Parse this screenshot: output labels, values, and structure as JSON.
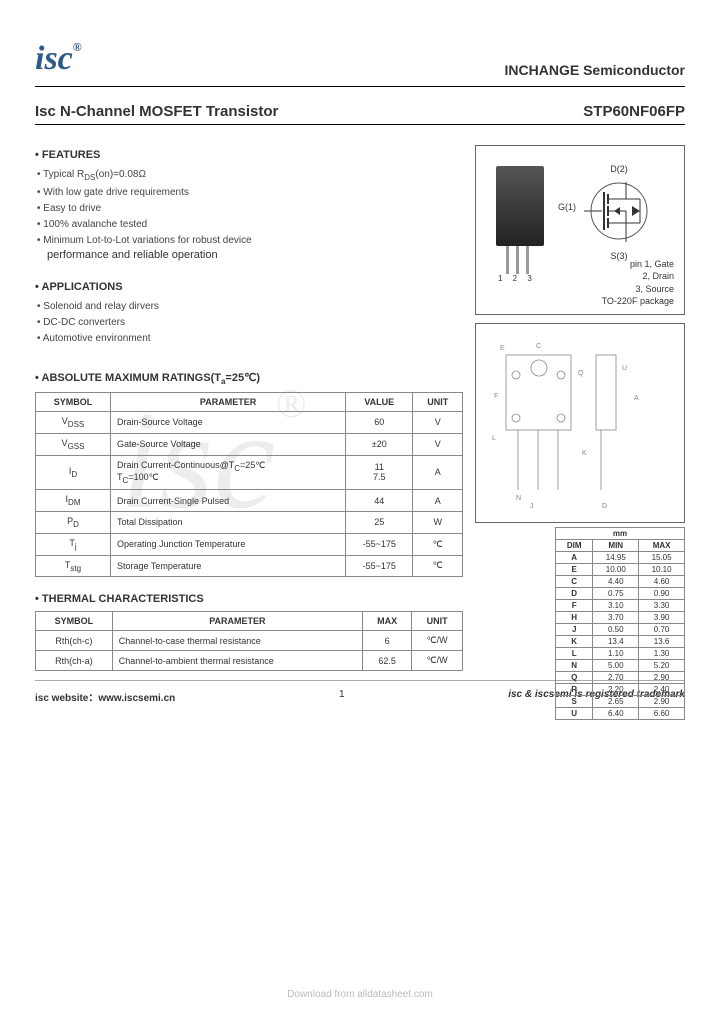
{
  "header": {
    "logo": "isc",
    "logo_sup": "®",
    "company": "INCHANGE Semiconductor"
  },
  "title": {
    "left": "Isc N-Channel MOSFET Transistor",
    "right": "STP60NF06FP"
  },
  "features": {
    "heading": "FEATURES",
    "items": [
      "Typical R<sub>DS</sub>(on)=0.08Ω",
      "With low gate drive requirements",
      "Easy to drive",
      "100% avalanche tested",
      "Minimum Lot-to-Lot variations for robust device"
    ],
    "wrap": "performance and reliable operation"
  },
  "applications": {
    "heading": "APPLICATIONS",
    "items": [
      "Solenoid and relay dirvers",
      "DC-DC converters",
      "Automotive environment"
    ]
  },
  "package": {
    "d_label": "D(2)",
    "g_label": "G(1)",
    "s_label": "S(3)",
    "pins": [
      "pin 1, Gate",
      "2, Drain",
      "3, Source"
    ],
    "pkg": "TO-220F",
    "pkg2": "package",
    "nums": "1  2  3"
  },
  "abs_ratings": {
    "heading": "ABSOLUTE MAXIMUM RATINGS(T<sub>a</sub>=25℃)",
    "cols": [
      "SYMBOL",
      "PARAMETER",
      "VALUE",
      "UNIT"
    ],
    "rows": [
      [
        "V<sub>DSS</sub>",
        "Drain-Source Voltage",
        "60",
        "V"
      ],
      [
        "V<sub>GSS</sub>",
        "Gate-Source Voltage",
        "±20",
        "V"
      ],
      [
        "I<sub>D</sub>",
        "Drain Current-Continuous@T<sub>C</sub>=25℃<br>T<sub>C</sub>=100℃",
        "11<br>7.5",
        "A"
      ],
      [
        "I<sub>DM</sub>",
        "Drain Current-Single Pulsed",
        "44",
        "A"
      ],
      [
        "P<sub>D</sub>",
        "Total Dissipation",
        "25",
        "W"
      ],
      [
        "T<sub>j</sub>",
        "Operating Junction Temperature",
        "-55~175",
        "℃"
      ],
      [
        "T<sub>stg</sub>",
        "Storage Temperature",
        "-55~175",
        "℃"
      ]
    ]
  },
  "thermal": {
    "heading": "THERMAL CHARACTERISTICS",
    "cols": [
      "SYMBOL",
      "PARAMETER",
      "MAX",
      "UNIT"
    ],
    "rows": [
      [
        "Rth(ch-c)",
        "Channel-to-case thermal resistance",
        "6",
        "℃/W"
      ],
      [
        "Rth(ch-a)",
        "Channel-to-ambient thermal resistance",
        "62.5",
        "℃/W"
      ]
    ]
  },
  "dims": {
    "heading": "mm",
    "cols": [
      "DIM",
      "MIN",
      "MAX"
    ],
    "rows": [
      [
        "A",
        "14.95",
        "15.05"
      ],
      [
        "E",
        "10.00",
        "10.10"
      ],
      [
        "C",
        "4.40",
        "4.60"
      ],
      [
        "D",
        "0.75",
        "0.90"
      ],
      [
        "F",
        "3.10",
        "3.30"
      ],
      [
        "H",
        "3.70",
        "3.90"
      ],
      [
        "J",
        "0.50",
        "0.70"
      ],
      [
        "K",
        "13.4",
        "13.6"
      ],
      [
        "L",
        "1.10",
        "1.30"
      ],
      [
        "N",
        "5.00",
        "5.20"
      ],
      [
        "Q",
        "2.70",
        "2.90"
      ],
      [
        "R",
        "2.20",
        "2.40"
      ],
      [
        "S",
        "2.65",
        "2.90"
      ],
      [
        "U",
        "6.40",
        "6.60"
      ]
    ]
  },
  "footer": {
    "left_pre": "isc website：",
    "url": "www.iscsemi.cn",
    "page": "1",
    "right": "isc & iscsemi is registered trademark"
  },
  "download": "Download from alldatasheet.com",
  "colors": {
    "border": "#888",
    "text": "#333",
    "logo": "#2c5a8a",
    "wm": "#ddd"
  }
}
